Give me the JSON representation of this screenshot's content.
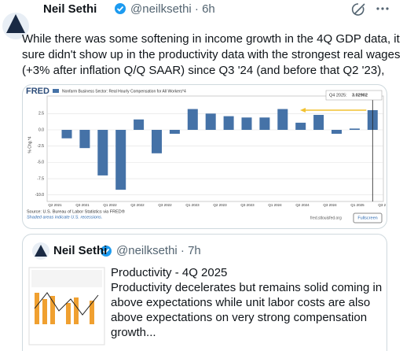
{
  "tweet": {
    "author": "Neil Sethi",
    "handle": "@neilksethi · 6h",
    "text": [
      "While there was some softening in income growth in the 4Q GDP data, it",
      "sure didn't show up in the productivity data with the strongest real wages",
      "(+3% after inflation Q/Q SAAR) since Q3 '24 (and before that Q2 '23),"
    ]
  },
  "fred_chart": {
    "type": "bar",
    "logo": "FRED",
    "legend": "Nonfarm Business Sector: Real Hourly Compensation for All Workers*4",
    "color": "#4572a7",
    "ylabel": "% Chg.*4",
    "values": [
      -1.3,
      -2.8,
      -7.0,
      -9.2,
      1.6,
      -3.6,
      -0.6,
      3.2,
      2.5,
      2.1,
      1.9,
      1.9,
      3.2,
      1.1,
      2.3,
      -0.6,
      0.2,
      3.02902
    ],
    "ylim": [
      -11,
      5.2
    ],
    "yticks": [
      2.5,
      {
        "value": 0,
        "label": "0.0"
      },
      -2.5,
      {
        "value": -5,
        "label": "-5.0"
      },
      -7.5,
      {
        "value": -10,
        "label": "-10.0"
      }
    ],
    "xtick_labels": [
      "Q2 2021",
      "Q3 2021",
      "Q1 2022",
      "Q2 2022",
      "Q3 2022",
      "Q1 2023",
      "Q2 2023",
      "Q3 2023",
      "Q1 2024",
      "Q2 2024",
      "Q3 2024",
      "Q1 2025",
      "Q3 2025"
    ],
    "annotation": {
      "label": "Q4 2025:",
      "value": 3.02902
    },
    "source": "Source: U.S. Bureau of Labor Statistics via FRED®",
    "note": "Shaded areas indicate U.S. recessions.",
    "site": "fred.stlouisfed.org",
    "button": "Fullscreen"
  },
  "quote": {
    "author": "Neil Sethi",
    "handle": "@neilksethi · 7h",
    "title": "Productivity - 4Q 2025",
    "text": [
      "Productivity decelerates but remains solid coming in",
      "above expectations while unit labor costs are also",
      "above expectations on very strong compensation",
      "growth..."
    ]
  }
}
